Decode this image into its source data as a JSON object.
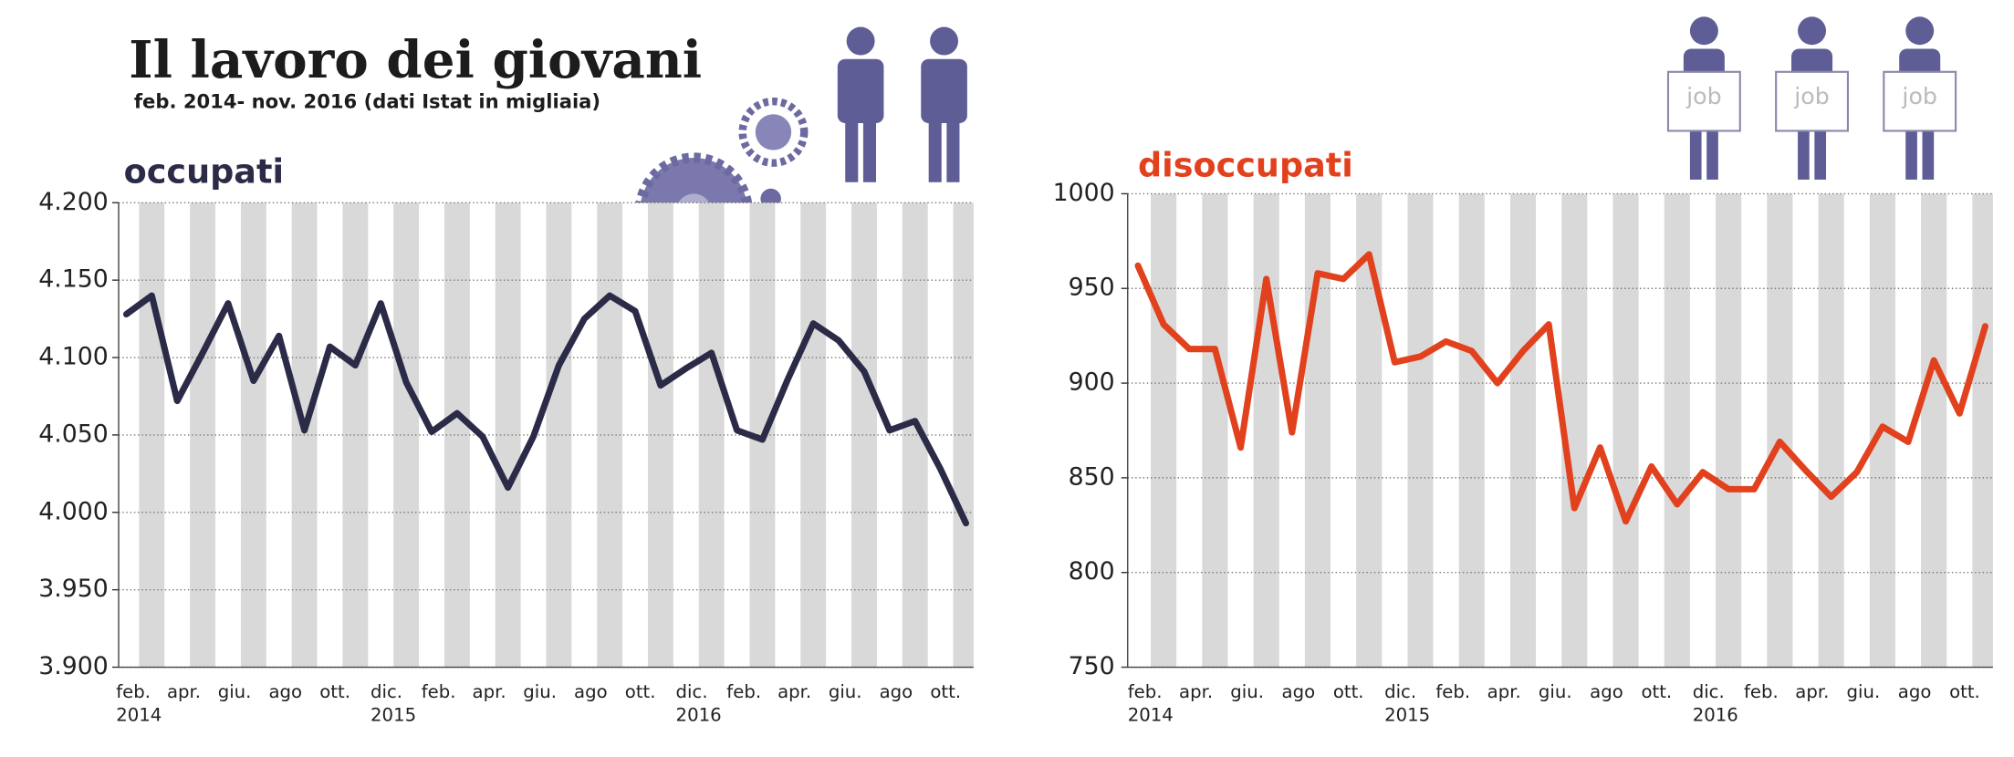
{
  "header": {
    "title": "Il lavoro dei giovani",
    "subtitle": "feb. 2014- nov. 2016 (dati Istat in migliaia)",
    "sign_text": "job"
  },
  "chart_data": [
    {
      "type": "line",
      "title": "occupati",
      "color": "#2b2b48",
      "grid": true,
      "categories": [
        "feb.",
        null,
        "apr.",
        null,
        "giu.",
        null,
        "ago",
        null,
        "ott.",
        null,
        "dic.",
        null,
        "feb.",
        null,
        "apr.",
        null,
        "giu.",
        null,
        "ago",
        null,
        "ott.",
        null,
        "dic.",
        null,
        "feb.",
        null,
        "apr.",
        null,
        "giu.",
        null,
        "ago",
        null,
        "ott.",
        null
      ],
      "year_labels": [
        "2014",
        null,
        null,
        null,
        null,
        null,
        null,
        null,
        null,
        null,
        "2015",
        null,
        null,
        null,
        null,
        null,
        null,
        null,
        null,
        null,
        null,
        null,
        "2016",
        null,
        null,
        null,
        null,
        null,
        null,
        null,
        null,
        null,
        null,
        null
      ],
      "values": [
        4128,
        4140,
        4072,
        4103,
        4135,
        4085,
        4114,
        4053,
        4107,
        4095,
        4135,
        4084,
        4052,
        4064,
        4049,
        4016,
        4049,
        4095,
        4125,
        4140,
        4130,
        4082,
        4093,
        4103,
        4053,
        4047,
        4086,
        4122,
        4111,
        4091,
        4053,
        4059,
        4028,
        3993
      ],
      "ylim": [
        3900,
        4200
      ],
      "yticks": [
        {
          "value": 3900,
          "label": "3.900"
        },
        {
          "value": 3950,
          "label": "3.950"
        },
        {
          "value": 4000,
          "label": "4.000"
        },
        {
          "value": 4050,
          "label": "4.050"
        },
        {
          "value": 4100,
          "label": "4.100"
        },
        {
          "value": 4150,
          "label": "4.150"
        },
        {
          "value": 4200,
          "label": "4.200"
        }
      ]
    },
    {
      "type": "line",
      "title": "disoccupati",
      "color": "#e2411e",
      "grid": true,
      "categories": [
        "feb.",
        null,
        "apr.",
        null,
        "giu.",
        null,
        "ago",
        null,
        "ott.",
        null,
        "dic.",
        null,
        "feb.",
        null,
        "apr.",
        null,
        "giu.",
        null,
        "ago",
        null,
        "ott.",
        null,
        "dic.",
        null,
        "feb.",
        null,
        "apr.",
        null,
        "giu.",
        null,
        "ago",
        null,
        "ott.",
        null
      ],
      "year_labels": [
        "2014",
        null,
        null,
        null,
        null,
        null,
        null,
        null,
        null,
        null,
        "2015",
        null,
        null,
        null,
        null,
        null,
        null,
        null,
        null,
        null,
        null,
        null,
        "2016",
        null,
        null,
        null,
        null,
        null,
        null,
        null,
        null,
        null,
        null,
        null
      ],
      "values": [
        962,
        931,
        918,
        918,
        866,
        955,
        874,
        958,
        955,
        968,
        911,
        914,
        922,
        917,
        900,
        917,
        931,
        834,
        866,
        827,
        856,
        836,
        853,
        844,
        844,
        869,
        854,
        840,
        853,
        877,
        869,
        912,
        884,
        930
      ],
      "ylim": [
        750,
        1000
      ],
      "yticks": [
        750,
        800,
        850,
        900,
        950,
        1000
      ]
    }
  ]
}
